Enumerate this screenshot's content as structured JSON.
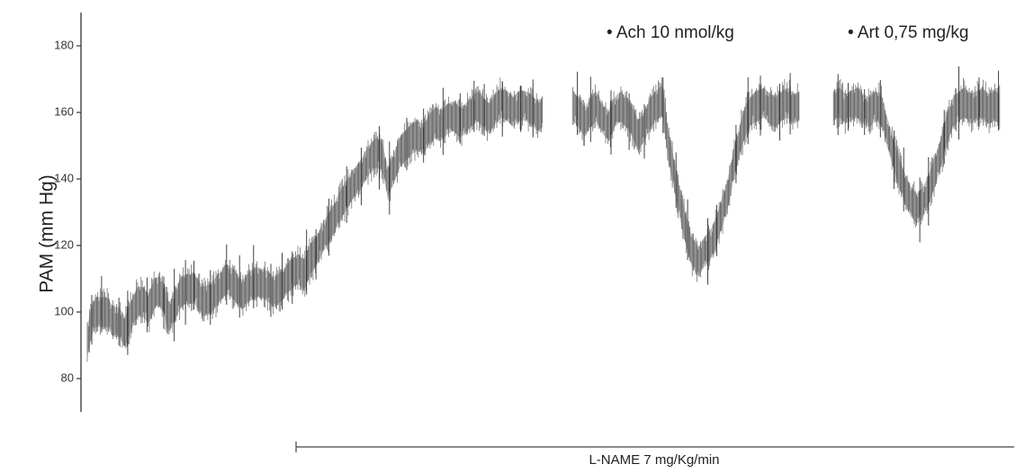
{
  "chart_data": {
    "type": "line",
    "title": "",
    "xlabel": "",
    "ylabel": "PAM (mm Hg)",
    "ylim": [
      70,
      190
    ],
    "yticks": [
      80,
      100,
      120,
      140,
      160,
      180
    ],
    "grid": false,
    "colors": {
      "trace": "#555555",
      "axis": "#333333"
    },
    "series": [
      {
        "segment": 1,
        "points": [
          [
            0,
            91
          ],
          [
            2,
            97
          ],
          [
            4,
            100
          ],
          [
            7,
            100
          ],
          [
            10,
            100
          ],
          [
            13,
            97
          ],
          [
            16,
            97
          ],
          [
            19,
            94
          ],
          [
            22,
            99
          ],
          [
            25,
            103
          ],
          [
            28,
            103
          ],
          [
            31,
            101
          ],
          [
            34,
            106
          ],
          [
            37,
            106
          ],
          [
            39,
            103
          ],
          [
            41,
            98
          ],
          [
            44,
            102
          ],
          [
            47,
            106
          ],
          [
            50,
            107
          ],
          [
            54,
            107
          ],
          [
            58,
            103
          ],
          [
            62,
            104
          ],
          [
            66,
            107
          ],
          [
            70,
            110
          ],
          [
            74,
            108
          ],
          [
            78,
            105
          ],
          [
            82,
            108
          ],
          [
            86,
            109
          ],
          [
            90,
            108
          ],
          [
            94,
            106
          ],
          [
            98,
            108
          ],
          [
            102,
            111
          ],
          [
            106,
            113
          ],
          [
            109,
            111
          ],
          [
            112,
            116
          ],
          [
            115,
            118
          ],
          [
            118,
            122
          ],
          [
            121,
            125
          ],
          [
            124,
            128
          ],
          [
            127,
            132
          ],
          [
            130,
            135
          ],
          [
            133,
            138
          ],
          [
            136,
            140
          ],
          [
            139,
            143
          ],
          [
            142,
            146
          ],
          [
            145,
            148
          ],
          [
            148,
            147
          ],
          [
            151,
            139
          ],
          [
            154,
            143
          ],
          [
            157,
            148
          ],
          [
            160,
            150
          ],
          [
            163,
            152
          ],
          [
            166,
            153
          ],
          [
            169,
            152
          ],
          [
            172,
            155
          ],
          [
            175,
            157
          ],
          [
            178,
            156
          ],
          [
            181,
            158
          ],
          [
            184,
            159
          ],
          [
            187,
            157
          ],
          [
            190,
            158
          ],
          [
            193,
            160
          ],
          [
            196,
            162
          ],
          [
            199,
            160
          ],
          [
            202,
            158
          ],
          [
            205,
            161
          ],
          [
            208,
            163
          ],
          [
            211,
            162
          ],
          [
            214,
            160
          ],
          [
            217,
            162
          ],
          [
            220,
            162
          ],
          [
            223,
            161
          ],
          [
            226,
            159
          ],
          [
            229,
            160
          ]
        ]
      },
      {
        "segment": 2,
        "points": [
          [
            244,
            162
          ],
          [
            247,
            160
          ],
          [
            250,
            157
          ],
          [
            253,
            160
          ],
          [
            256,
            162
          ],
          [
            259,
            158
          ],
          [
            262,
            156
          ],
          [
            265,
            160
          ],
          [
            268,
            162
          ],
          [
            271,
            160
          ],
          [
            274,
            157
          ],
          [
            277,
            153
          ],
          [
            280,
            156
          ],
          [
            283,
            160
          ],
          [
            286,
            162
          ],
          [
            289,
            164
          ],
          [
            292,
            150
          ],
          [
            295,
            141
          ],
          [
            298,
            132
          ],
          [
            301,
            124
          ],
          [
            304,
            118
          ],
          [
            307,
            115
          ],
          [
            310,
            118
          ],
          [
            313,
            120
          ],
          [
            316,
            124
          ],
          [
            319,
            130
          ],
          [
            322,
            136
          ],
          [
            325,
            145
          ],
          [
            328,
            152
          ],
          [
            331,
            158
          ],
          [
            334,
            161
          ],
          [
            337,
            162
          ],
          [
            340,
            163
          ],
          [
            343,
            161
          ],
          [
            346,
            160
          ],
          [
            349,
            162
          ],
          [
            352,
            163
          ],
          [
            355,
            161
          ],
          [
            358,
            162
          ]
        ]
      },
      {
        "segment": 3,
        "points": [
          [
            375,
            162
          ],
          [
            378,
            163
          ],
          [
            381,
            161
          ],
          [
            384,
            162
          ],
          [
            387,
            163
          ],
          [
            390,
            161
          ],
          [
            393,
            160
          ],
          [
            396,
            162
          ],
          [
            399,
            161
          ],
          [
            402,
            154
          ],
          [
            405,
            148
          ],
          [
            408,
            142
          ],
          [
            411,
            137
          ],
          [
            414,
            133
          ],
          [
            417,
            131
          ],
          [
            420,
            133
          ],
          [
            423,
            137
          ],
          [
            426,
            142
          ],
          [
            429,
            148
          ],
          [
            432,
            155
          ],
          [
            435,
            160
          ],
          [
            438,
            162
          ],
          [
            441,
            163
          ],
          [
            444,
            161
          ],
          [
            447,
            162
          ],
          [
            450,
            163
          ],
          [
            453,
            161
          ],
          [
            456,
            162
          ],
          [
            459,
            161
          ]
        ]
      }
    ],
    "annotations": [
      {
        "label": "• Ach 10 nmol/kg"
      },
      {
        "label": "• Art 0,75 mg/kg"
      }
    ],
    "bracket": {
      "label": "L-NAME 7 mg/Kg/min"
    }
  }
}
